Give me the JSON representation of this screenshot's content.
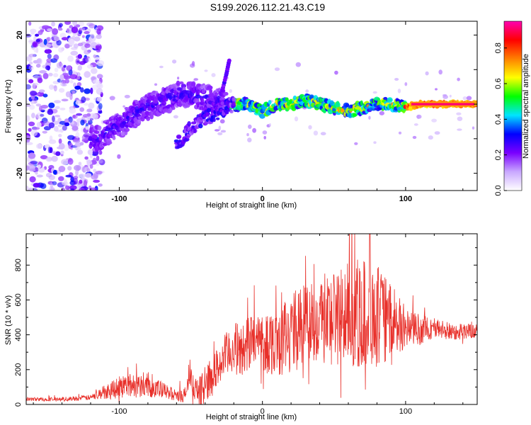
{
  "title": "S199.2026.112.21.43.C19",
  "colors": {
    "snr_line": "#e8302a",
    "background": "#ffffff",
    "axis": "#000000"
  },
  "chart_data": [
    {
      "type": "heatmap",
      "name": "spectrogram",
      "xlabel": "Height of straight line (km)",
      "ylabel": "Frequency (Hz)",
      "xlim": [
        -165,
        150
      ],
      "ylim": [
        -25,
        24
      ],
      "xticks": [
        -100,
        0,
        100
      ],
      "xtick_labels": [
        "-100",
        "0",
        "100"
      ],
      "yticks": [
        -20,
        -10,
        0,
        10,
        20
      ],
      "ytick_labels": [
        "-20",
        "-10",
        "0",
        "10",
        "20"
      ],
      "colorbar": {
        "label": "Normalized spectral amplitude",
        "range": [
          0,
          0.95
        ],
        "ticks": [
          0,
          0.2,
          0.4,
          0.6,
          0.8
        ],
        "tick_labels": [
          "0.0",
          "0.2",
          "0.4",
          "0.6",
          "0.8"
        ],
        "colormap": [
          "#ffffff",
          "#c9a8ff",
          "#7a00ff",
          "#0000ff",
          "#00e5ff",
          "#00ff00",
          "#ffff00",
          "#ff8000",
          "#ff0000",
          "#ff00b0"
        ]
      },
      "ridge": {
        "description_points": [
          [
            -115,
            -10
          ],
          [
            -100,
            -6
          ],
          [
            -85,
            -2
          ],
          [
            -70,
            1
          ],
          [
            -55,
            3
          ],
          [
            -40,
            2
          ],
          [
            -25,
            0
          ],
          [
            -10,
            0
          ],
          [
            0,
            -2
          ],
          [
            10,
            0
          ],
          [
            20,
            0
          ],
          [
            30,
            1
          ],
          [
            40,
            0
          ],
          [
            50,
            -1
          ],
          [
            60,
            -2
          ],
          [
            70,
            -1
          ],
          [
            80,
            0
          ],
          [
            90,
            0
          ],
          [
            100,
            -1
          ],
          [
            110,
            0
          ],
          [
            120,
            0
          ],
          [
            130,
            0
          ],
          [
            140,
            0
          ],
          [
            150,
            0
          ]
        ],
        "secondary_branch": [
          [
            -60,
            -12
          ],
          [
            -50,
            -7
          ],
          [
            -40,
            -4
          ],
          [
            -30,
            -2
          ],
          [
            -20,
            0
          ]
        ],
        "spike": [
          [
            -28,
            4
          ],
          [
            -25,
            9
          ],
          [
            -23,
            13
          ]
        ]
      }
    },
    {
      "type": "line",
      "name": "snr",
      "xlabel": "Height of straight line (km)",
      "ylabel": "SNR (10 * v/v)",
      "xlim": [
        -165,
        150
      ],
      "ylim": [
        0,
        980
      ],
      "xticks": [
        -100,
        0,
        100
      ],
      "xtick_labels": [
        "-100",
        "0",
        "100"
      ],
      "yticks": [
        0,
        200,
        400,
        600,
        800
      ],
      "ytick_labels": [
        "0",
        "200",
        "400",
        "600",
        "800"
      ],
      "envelope": [
        [
          -165,
          30
        ],
        [
          -140,
          30
        ],
        [
          -120,
          40
        ],
        [
          -105,
          90
        ],
        [
          -95,
          110
        ],
        [
          -80,
          110
        ],
        [
          -70,
          80
        ],
        [
          -55,
          40
        ],
        [
          -50,
          150
        ],
        [
          -45,
          60
        ],
        [
          -35,
          160
        ],
        [
          -30,
          230
        ],
        [
          -20,
          330
        ],
        [
          -15,
          300
        ],
        [
          -10,
          360
        ],
        [
          0,
          360
        ],
        [
          10,
          360
        ],
        [
          20,
          420
        ],
        [
          30,
          470
        ],
        [
          40,
          490
        ],
        [
          50,
          500
        ],
        [
          60,
          520
        ],
        [
          70,
          520
        ],
        [
          75,
          530
        ],
        [
          80,
          510
        ],
        [
          90,
          470
        ],
        [
          100,
          440
        ],
        [
          110,
          430
        ],
        [
          120,
          440
        ],
        [
          130,
          420
        ],
        [
          140,
          420
        ],
        [
          150,
          420
        ]
      ],
      "noise_amplitude": [
        [
          -165,
          10
        ],
        [
          -120,
          15
        ],
        [
          -100,
          70
        ],
        [
          -80,
          70
        ],
        [
          -60,
          30
        ],
        [
          -40,
          100
        ],
        [
          -20,
          150
        ],
        [
          0,
          180
        ],
        [
          20,
          220
        ],
        [
          40,
          260
        ],
        [
          60,
          300
        ],
        [
          75,
          330
        ],
        [
          90,
          220
        ],
        [
          100,
          120
        ],
        [
          120,
          60
        ],
        [
          150,
          40
        ]
      ],
      "peak_max": {
        "x": 75,
        "y": 980
      }
    }
  ]
}
